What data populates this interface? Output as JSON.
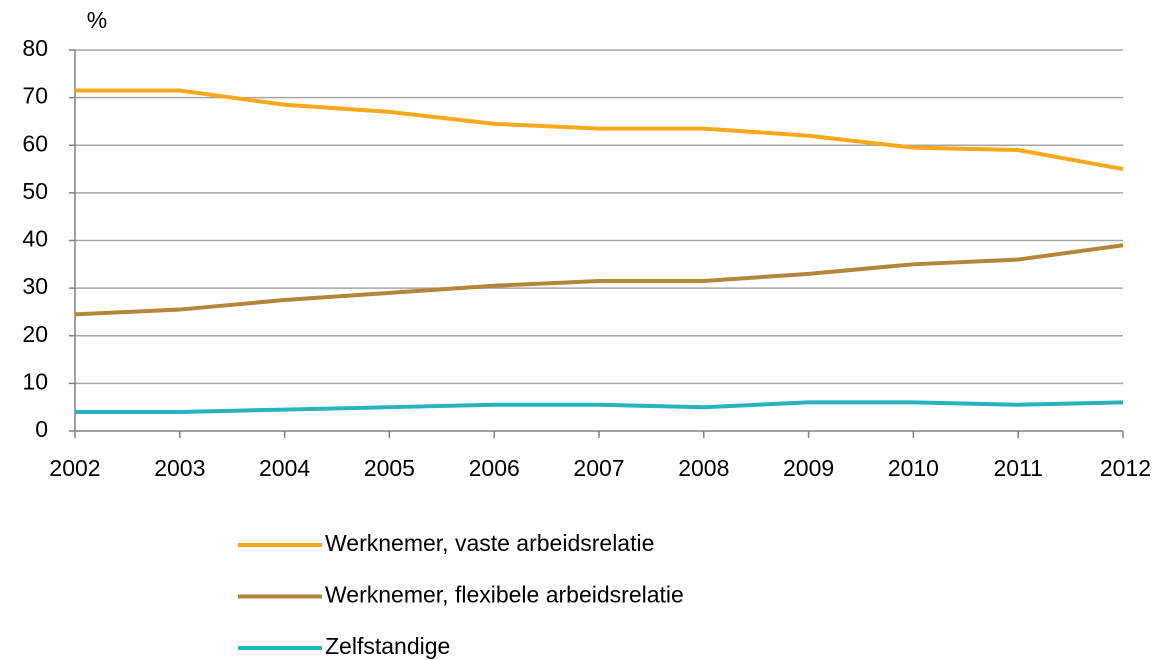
{
  "chart_data": {
    "type": "line",
    "y_label": "%",
    "x": [
      2002,
      2003,
      2004,
      2005,
      2006,
      2007,
      2008,
      2009,
      2010,
      2011,
      2012
    ],
    "xlim": [
      2002,
      2012
    ],
    "xticks": [
      2002,
      2003,
      2004,
      2005,
      2006,
      2007,
      2008,
      2009,
      2010,
      2011,
      2012
    ],
    "ylim": [
      0,
      80
    ],
    "yticks": [
      0,
      10,
      20,
      30,
      40,
      50,
      60,
      70,
      80
    ],
    "grid": true,
    "legend": "bottom",
    "series": [
      {
        "name": "Werknemer, vaste arbeidsrelatie",
        "color": "#f7a81b",
        "values": [
          71.5,
          71.5,
          68.5,
          67,
          64.5,
          63.5,
          63.5,
          62,
          59.5,
          59,
          55
        ]
      },
      {
        "name": "Werknemer, flexibele arbeidsrelatie",
        "color": "#b5853a",
        "values": [
          24.5,
          25.5,
          27.5,
          29,
          30.5,
          31.5,
          31.5,
          33,
          35,
          36,
          39
        ]
      },
      {
        "name": "Zelfstandige",
        "color": "#27b4bf",
        "values": [
          4,
          4,
          4.5,
          5,
          5.5,
          5.5,
          5,
          6,
          6,
          5.5,
          6
        ]
      }
    ]
  }
}
